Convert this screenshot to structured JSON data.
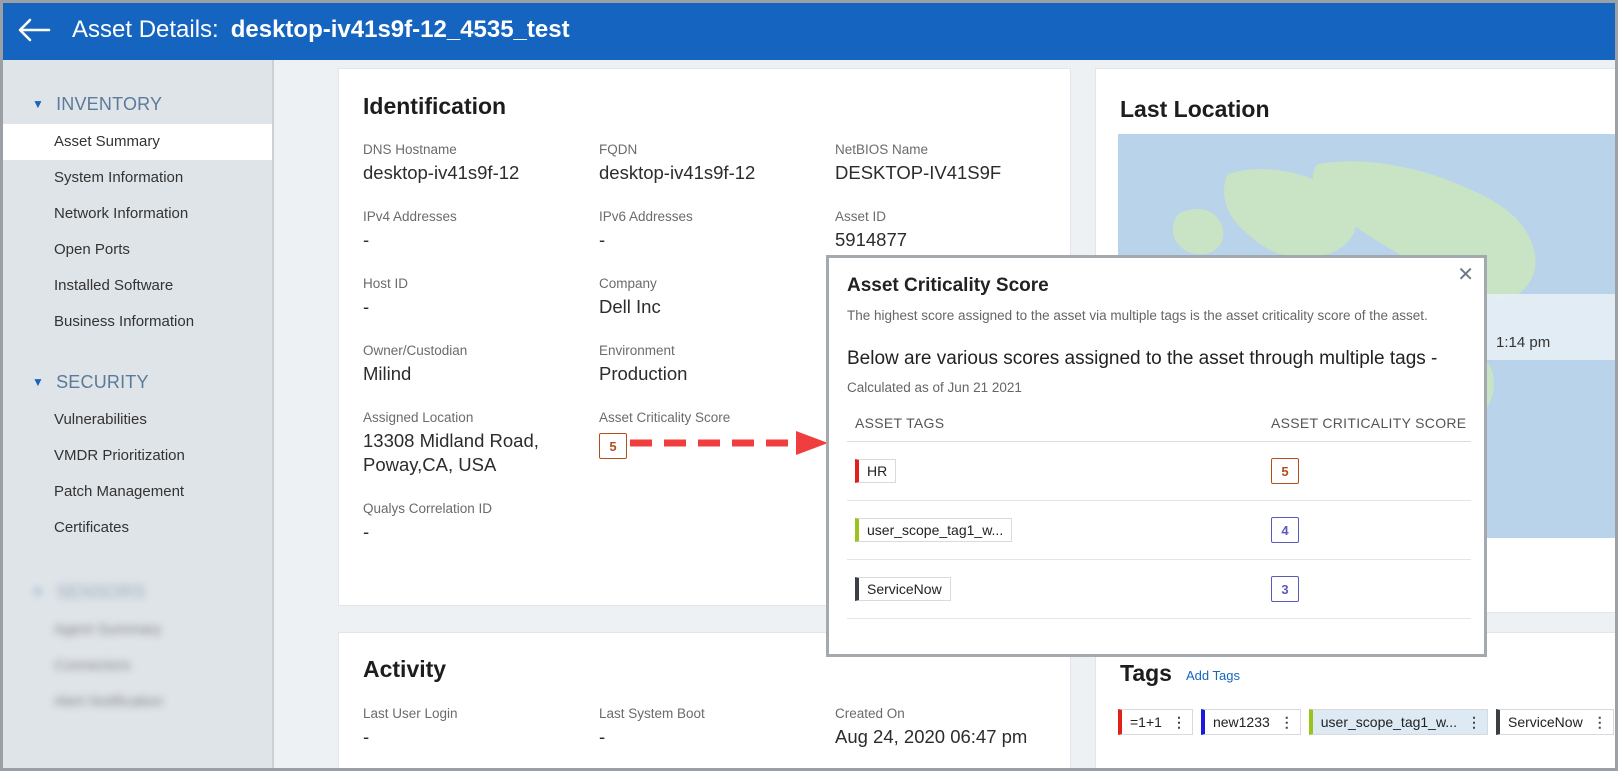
{
  "header": {
    "title_label": "Asset Details:",
    "title_value": "desktop-iv41s9f-12_4535_test",
    "back_icon": "arrow-left-icon"
  },
  "sidebar": {
    "inventory_title": "INVENTORY",
    "inventory_items": [
      "Asset Summary",
      "System Information",
      "Network Information",
      "Open Ports",
      "Installed Software",
      "Business Information"
    ],
    "security_title": "SECURITY",
    "security_items": [
      "Vulnerabilities",
      "VMDR Prioritization",
      "Patch Management",
      "Certificates"
    ],
    "blurred_title": "SENSORS",
    "blurred_items": [
      "Agent Summary",
      "Connectors",
      "Alert Notification"
    ]
  },
  "identification": {
    "title": "Identification",
    "dns_label": "DNS Hostname",
    "dns_value": "desktop-iv41s9f-12",
    "fqdn_label": "FQDN",
    "fqdn_value": "desktop-iv41s9f-12",
    "netbios_label": "NetBIOS Name",
    "netbios_value": "DESKTOP-IV41S9F",
    "ipv4_label": "IPv4 Addresses",
    "ipv4_value": "-",
    "ipv6_label": "IPv6 Addresses",
    "ipv6_value": "-",
    "assetid_label": "Asset ID",
    "assetid_value": "5914877",
    "hostid_label": "Host ID",
    "hostid_value": "-",
    "company_label": "Company",
    "company_value": "Dell Inc",
    "owner_label": "Owner/Custodian",
    "owner_value": "Milind",
    "env_label": "Environment",
    "env_value": "Production",
    "loc_label": "Assigned Location",
    "loc_value_line1": "13308 Midland Road,",
    "loc_value_line2": "Poway,CA, USA",
    "acs_label": "Asset Criticality Score",
    "acs_value": "5",
    "qcid_label": "Qualys Correlation ID",
    "qcid_value": "-"
  },
  "last_location": {
    "title": "Last Location",
    "time_partial": "1:14 pm"
  },
  "activity": {
    "title": "Activity",
    "login_label": "Last User Login",
    "login_value": "-",
    "boot_label": "Last System Boot",
    "boot_value": "-",
    "created_label": "Created On",
    "created_value": "Aug 24, 2020 06:47 pm"
  },
  "tags_section": {
    "title": "Tags",
    "add_link": "Add Tags",
    "chips": [
      {
        "label": "=1+1",
        "color": "#e0201b"
      },
      {
        "label": "new1233",
        "color": "#1a1ae0"
      },
      {
        "label": "user_scope_tag1_w...",
        "color": "#9ac31c"
      },
      {
        "label": "ServiceNow",
        "color": "#3a3f44"
      }
    ]
  },
  "popup": {
    "title": "Asset Criticality Score",
    "subtitle": "The highest score assigned to the asset via multiple tags is the asset criticality score of the asset.",
    "description": "Below are various scores assigned to the asset through multiple tags -",
    "calculated": "Calculated as of Jun 21 2021",
    "col_tags": "ASSET TAGS",
    "col_score": "ASSET CRITICALITY SCORE",
    "rows": [
      {
        "tag": "HR",
        "color": "#e0201b",
        "score": "5"
      },
      {
        "tag": "user_scope_tag1_w...",
        "color": "#9ac31c",
        "score": "4"
      },
      {
        "tag": "ServiceNow",
        "color": "#3a3f44",
        "score": "3"
      }
    ],
    "close_icon": "close-icon"
  }
}
